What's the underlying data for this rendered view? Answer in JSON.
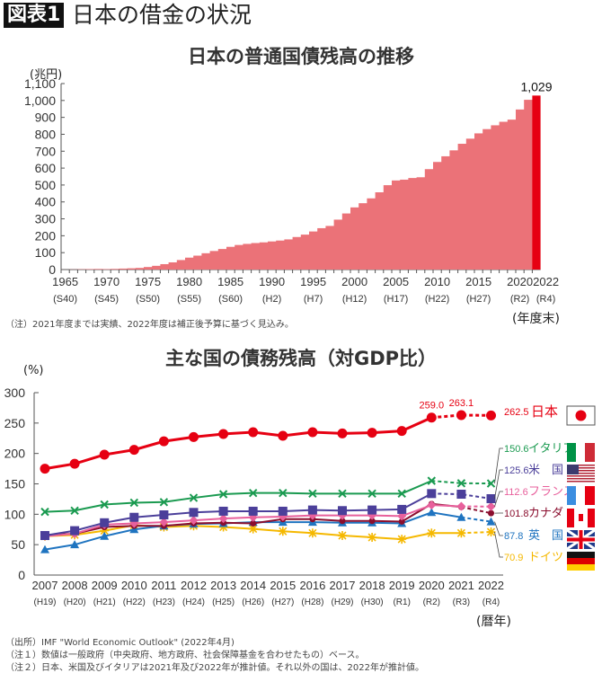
{
  "header": {
    "badge": "図表1",
    "title": "日本の借金の状況"
  },
  "chart_data": [
    {
      "type": "bar",
      "title": "日本の普通国債残高の推移",
      "ylabel": "(兆円)",
      "xlabel": "(年度末)",
      "ylim": [
        0,
        1100
      ],
      "yticks": [
        "0",
        "100",
        "200",
        "300",
        "400",
        "500",
        "600",
        "700",
        "800",
        "900",
        "1,000",
        "1,100"
      ],
      "xtick_labels": [
        {
          "year": "1965",
          "era": "(S40)"
        },
        {
          "year": "1970",
          "era": "(S45)"
        },
        {
          "year": "1975",
          "era": "(S50)"
        },
        {
          "year": "1980",
          "era": "(S55)"
        },
        {
          "year": "1985",
          "era": "(S60)"
        },
        {
          "year": "1990",
          "era": "(H2)"
        },
        {
          "year": "1995",
          "era": "(H7)"
        },
        {
          "year": "2000",
          "era": "(H12)"
        },
        {
          "year": "2005",
          "era": "(H17)"
        },
        {
          "year": "2010",
          "era": "(H22)"
        },
        {
          "year": "2015",
          "era": "(H27)"
        },
        {
          "year": "2020",
          "era": "(R2)"
        },
        {
          "year": "2022",
          "era": "(R4)"
        }
      ],
      "start_year": 1965,
      "values": [
        0.2,
        0.9,
        1.9,
        2.8,
        3.6,
        2.8,
        4.0,
        5.8,
        7.5,
        9.7,
        15.0,
        22.1,
        32.0,
        42.6,
        56.3,
        70.5,
        82.3,
        96.5,
        109.7,
        121.7,
        134.4,
        145.3,
        151.8,
        156.8,
        160.9,
        166.3,
        171.6,
        178.4,
        192.5,
        206.6,
        225.2,
        244.7,
        258.0,
        295.2,
        331.7,
        367.6,
        392.4,
        421.1,
        456.9,
        499.0,
        526.9,
        531.7,
        541.5,
        545.9,
        593.9,
        636.3,
        669.9,
        705.0,
        743.9,
        774.1,
        805.4,
        830.6,
        853.2,
        874.0,
        886.7,
        946.6,
        1004,
        1029
      ],
      "data_label": "1,029",
      "colors": {
        "bar": "#eb7278",
        "highlight": "#e60012"
      },
      "note": "（注）2021年度までは実績、2022年度は補正後予算に基づく見込み。"
    },
    {
      "type": "line",
      "title": "主な国の債務残高（対GDP比）",
      "ylabel": "(%)",
      "xlabel": "(暦年)",
      "ylim": [
        0,
        300
      ],
      "yticks": [
        "0",
        "50",
        "100",
        "150",
        "200",
        "250",
        "300"
      ],
      "x": [
        "2007",
        "2008",
        "2009",
        "2010",
        "2011",
        "2012",
        "2013",
        "2014",
        "2015",
        "2016",
        "2017",
        "2018",
        "2019",
        "2020",
        "2021",
        "2022"
      ],
      "x_era": [
        "(H19)",
        "(H20)",
        "(H21)",
        "(H22)",
        "(H23)",
        "(H24)",
        "(H25)",
        "(H26)",
        "(H27)",
        "(H28)",
        "(H29)",
        "(H30)",
        "(R1)",
        "(R2)",
        "(R3)",
        "(R4)"
      ],
      "series": [
        {
          "name": "日本",
          "end_label": "262.5",
          "color": "#e60012",
          "marker": "circle",
          "dash_from": "2020",
          "point_labels": {
            "2020": "259.0",
            "2021": "263.1"
          },
          "values": [
            175,
            183,
            198,
            206,
            220,
            227,
            232,
            235,
            229,
            235,
            233,
            234,
            237,
            259.0,
            263.1,
            262.5
          ]
        },
        {
          "name": "イタリア",
          "end_label": "150.6",
          "color": "#1a9a50",
          "marker": "x",
          "dash_from": "2020",
          "values": [
            104,
            106,
            116,
            119,
            120,
            127,
            133,
            135,
            135,
            134,
            134,
            134,
            134,
            155,
            151,
            150.6
          ]
        },
        {
          "name": "米　国",
          "end_label": "125.6",
          "color": "#4b3f9a",
          "marker": "square",
          "dash_from": "2020",
          "values": [
            65,
            73,
            86,
            95,
            99,
            103,
            105,
            105,
            105,
            107,
            106,
            107,
            108,
            134,
            133,
            125.6
          ]
        },
        {
          "name": "フランス",
          "end_label": "112.6",
          "color": "#e8609c",
          "marker": "diamond",
          "dash_from": "2021",
          "values": [
            64,
            68,
            83,
            85,
            87,
            90,
            93,
            95,
            96,
            98,
            98,
            98,
            97,
            115,
            113,
            112.6
          ]
        },
        {
          "name": "カナダ",
          "end_label": "101.8",
          "color": "#8a0e2e",
          "marker": "circle-small",
          "dash_from": "2021",
          "values": [
            66,
            68,
            79,
            81,
            81,
            85,
            86,
            85,
            92,
            92,
            89,
            89,
            88,
            117,
            112,
            101.8
          ]
        },
        {
          "name": "英　国",
          "end_label": "87.8",
          "color": "#1f74c0",
          "marker": "triangle",
          "dash_from": "2021",
          "values": [
            42,
            50,
            64,
            75,
            81,
            84,
            85,
            87,
            87,
            87,
            86,
            86,
            85,
            103,
            95,
            87.8
          ]
        },
        {
          "name": "ドイツ",
          "end_label": "70.9",
          "color": "#f5b800",
          "marker": "asterisk",
          "dash_from": "2021",
          "values": [
            64,
            66,
            73,
            82,
            79,
            81,
            79,
            76,
            72,
            69,
            65,
            62,
            59,
            69,
            69,
            70.9
          ]
        }
      ],
      "flags": [
        "japan-flag",
        "italy-flag",
        "usa-flag",
        "france-flag",
        "canada-flag",
        "uk-flag",
        "germany-flag"
      ]
    }
  ],
  "footnotes": [
    "（出所）IMF \"World Economic Outlook\" (2022年4月)",
    "（注１）数値は一般政府（中央政府、地方政府、社会保障基金を合わせたもの）ベース。",
    "（注２）日本、米国及びイタリアは2021年及び2022年が推計値。それ以外の国は、2022年が推計値。"
  ]
}
